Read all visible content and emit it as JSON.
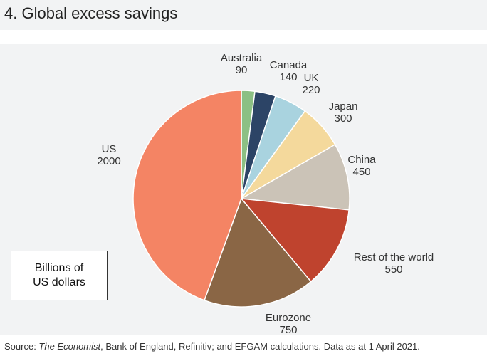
{
  "title": "4. Global excess savings",
  "units_box": {
    "line1": "Billions of",
    "line2": "US dollars"
  },
  "source": {
    "prefix": "Source: ",
    "italic": "The Economist",
    "rest": ", Bank of England, Refinitiv; and EFGAM calculations. Data as at 1 April 2021."
  },
  "chart_data": {
    "type": "pie",
    "start": "12 o'clock, clockwise",
    "slices": [
      {
        "label": "Australia",
        "value": 90,
        "color": "#8cc084"
      },
      {
        "label": "Canada",
        "value": 140,
        "color": "#2c4466"
      },
      {
        "label": "UK",
        "value": 220,
        "color": "#a9d3df"
      },
      {
        "label": "Japan",
        "value": 300,
        "color": "#f4d99c"
      },
      {
        "label": "China",
        "value": 450,
        "color": "#cbc3b7"
      },
      {
        "label": "Rest of the world",
        "value": 550,
        "color": "#bf432e"
      },
      {
        "label": "Eurozone",
        "value": 750,
        "color": "#8a6645"
      },
      {
        "label": "US",
        "value": 2000,
        "color": "#f48464"
      }
    ]
  }
}
